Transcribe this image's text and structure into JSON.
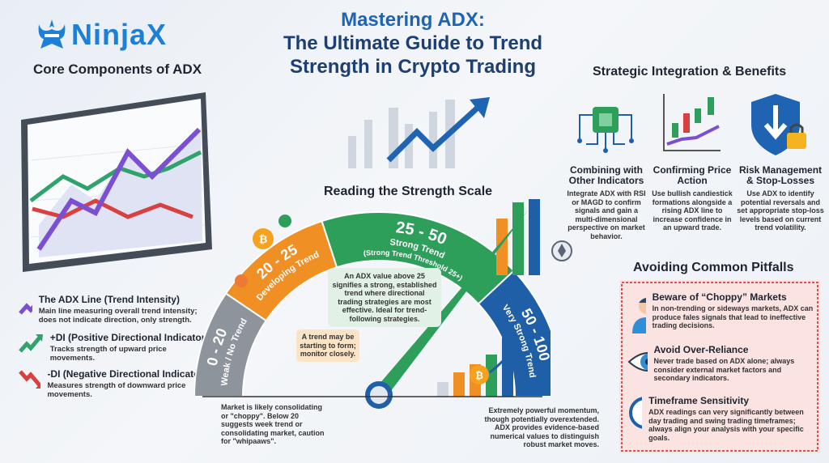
{
  "brand": {
    "name": "NinjaX"
  },
  "title": {
    "line1": "Mastering ADX:",
    "line2": "The Ultimate Guide to Trend",
    "line3": "Strength in Crypto Trading"
  },
  "core_components": {
    "title": "Core Components of ADX",
    "items": [
      {
        "title": "The ADX Line (Trend Intensity)",
        "desc": "Main line measuring overall trend intensity; does not indicate direction, only strength.",
        "icon": "purple-up-arrow-icon",
        "color": "#7b4fd1"
      },
      {
        "title": "+DI (Positive Directional Indicator)",
        "desc": "Tracks strength of upward price movements.",
        "icon": "green-up-arrow-icon",
        "color": "#2fa36b"
      },
      {
        "title": "-DI (Negative Directional Indicator)",
        "desc": "Measures strength of downward price movements.",
        "icon": "red-down-arrow-icon",
        "color": "#d94040"
      }
    ]
  },
  "scale": {
    "title": "Reading the Strength Scale",
    "segments": [
      {
        "range": "0 - 20",
        "label": "Weak / No Trend",
        "color": "#8d949c"
      },
      {
        "range": "20 - 25",
        "label": "Developing Trend",
        "color": "#f08f24"
      },
      {
        "range": "25 - 50",
        "label": "Strong Trend",
        "sub": "(Strong Trend Threshold 25+)",
        "color": "#2e9e5b"
      },
      {
        "range": "50 - 100",
        "label": "Very Strong Trend",
        "color": "#1f5fa8"
      }
    ],
    "notes": {
      "weak": "Market is likely consolidating or \"choppy\". Below 20 suggests week trend or consolidating market, caution for \"whipaaws\".",
      "developing": "A trend may be starting to form; monitor closely.",
      "strong": "An ADX value above 25 signifies a strong, established trend where directional trading strategies are most effective. Ideal for trend-following strategies.",
      "very_strong": "Extremely powerful momentum, though potentially overextended. ADX provides evidence-based numerical values to distinguish robust market moves."
    }
  },
  "strategic": {
    "title": "Strategic Integration & Benefits",
    "items": [
      {
        "title": "Combining with Other Indicators",
        "desc": "Integrate ADX with RSI or MAGD to confirm signals and gain a multi-dimensional perspective on market behavior.",
        "icon": "circuit-chip-icon"
      },
      {
        "title": "Confirming Price Action",
        "desc": "Use bullish candiestick formations alongside a rising ADX line to increase confidence in an upward trade.",
        "icon": "candlestick-chart-icon"
      },
      {
        "title": "Risk Management & Stop-Losses",
        "desc": "Use ADX to identify potential reversals and set appropriate stop-loss levels based on current trend volatility.",
        "icon": "shield-lock-icon"
      }
    ]
  },
  "pitfalls": {
    "title": "Avoiding Common Pitfalls",
    "items": [
      {
        "title": "Beware of “Choppy” Markets",
        "desc": "In non-trending or sideways markets, ADX can produce fales signals that lead to ineffective trading decisions.",
        "icon": "confused-person-icon"
      },
      {
        "title": "Avoid Over-Reliance",
        "desc": "Never trade based on ADX alone; always consider external market factors and secondary indicators.",
        "icon": "eye-cross-icon"
      },
      {
        "title": "Timeframe Sensitivity",
        "desc": "ADX readings can very significantly between day trading and swing trading timeframes; always align your analysis with your specific goals.",
        "icon": "clock-toggle-icon"
      }
    ]
  }
}
